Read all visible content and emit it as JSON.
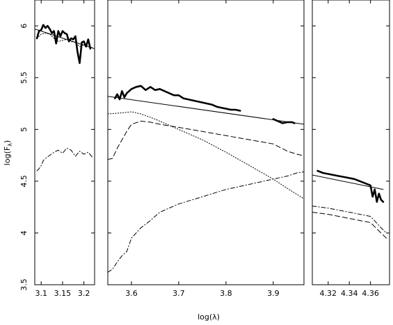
{
  "chart_data": {
    "type": "line",
    "xlabel": "log(λ)",
    "ylabel": "log(F",
    "ylabel_sub": "λ",
    "ylabel_close": ")",
    "ylim": [
      3.5,
      6.25
    ],
    "yticks": [
      {
        "v": 3.5,
        "label": "3.5"
      },
      {
        "v": 4,
        "label": "4"
      },
      {
        "v": 4.5,
        "label": "4.5"
      },
      {
        "v": 5,
        "label": "5"
      },
      {
        "v": 5.5,
        "label": "5.5"
      },
      {
        "v": 6,
        "label": "6"
      }
    ],
    "panels": [
      {
        "xlim": [
          3.085,
          3.225
        ],
        "xticks": [
          {
            "v": 3.1,
            "label": "3.1"
          },
          {
            "v": 3.15,
            "label": "3.15"
          },
          {
            "v": 3.2,
            "label": "3.2"
          }
        ],
        "series": [
          {
            "style": "thick",
            "x": [
              3.09,
              3.095,
              3.1,
              3.105,
              3.11,
              3.115,
              3.12,
              3.125,
              3.13,
              3.135,
              3.14,
              3.145,
              3.15,
              3.155,
              3.16,
              3.165,
              3.17,
              3.175,
              3.18,
              3.185,
              3.19,
              3.195,
              3.2,
              3.205,
              3.21,
              3.215
            ],
            "y": [
              5.88,
              5.95,
              5.96,
              6.01,
              5.98,
              6.0,
              5.97,
              5.93,
              5.95,
              5.83,
              5.95,
              5.9,
              5.95,
              5.93,
              5.92,
              5.85,
              5.88,
              5.87,
              5.9,
              5.75,
              5.64,
              5.84,
              5.85,
              5.8,
              5.87,
              5.78
            ]
          },
          {
            "style": "thin",
            "x": [
              3.085,
              3.225
            ],
            "y": [
              5.97,
              5.78
            ]
          },
          {
            "style": "dotted",
            "x": [
              3.09,
              3.1,
              3.11,
              3.12,
              3.13,
              3.14,
              3.15,
              3.16,
              3.17,
              3.18,
              3.19,
              3.2,
              3.21,
              3.22
            ],
            "y": [
              5.88,
              5.92,
              5.93,
              5.92,
              5.88,
              5.85,
              5.86,
              5.87,
              5.85,
              5.84,
              5.8,
              5.82,
              5.8,
              5.79
            ]
          },
          {
            "style": "dashdot",
            "x": [
              3.09,
              3.095,
              3.1,
              3.105,
              3.11,
              3.12,
              3.13,
              3.14,
              3.15,
              3.16,
              3.17,
              3.18,
              3.19,
              3.2,
              3.21,
              3.22
            ],
            "y": [
              4.6,
              4.62,
              4.65,
              4.7,
              4.72,
              4.75,
              4.78,
              4.8,
              4.77,
              4.82,
              4.8,
              4.74,
              4.79,
              4.76,
              4.78,
              4.73
            ]
          }
        ]
      },
      {
        "xlim": [
          3.55,
          3.965
        ],
        "xticks": [
          {
            "v": 3.6,
            "label": "3.6"
          },
          {
            "v": 3.7,
            "label": "3.7"
          },
          {
            "v": 3.8,
            "label": "3.8"
          },
          {
            "v": 3.9,
            "label": "3.9"
          }
        ],
        "series": [
          {
            "style": "thick",
            "x": [
              3.565,
              3.57,
              3.575,
              3.58,
              3.585,
              3.59,
              3.6,
              3.61,
              3.62,
              3.63,
              3.64,
              3.65,
              3.66,
              3.67,
              3.68,
              3.69,
              3.7,
              3.71,
              3.72,
              3.73,
              3.74,
              3.75,
              3.76,
              3.77,
              3.78,
              3.79,
              3.8,
              3.81,
              3.82,
              3.83
            ],
            "y": [
              5.3,
              5.34,
              5.29,
              5.37,
              5.31,
              5.35,
              5.39,
              5.41,
              5.42,
              5.38,
              5.41,
              5.38,
              5.39,
              5.37,
              5.35,
              5.33,
              5.33,
              5.3,
              5.29,
              5.28,
              5.27,
              5.26,
              5.25,
              5.24,
              5.22,
              5.21,
              5.2,
              5.19,
              5.19,
              5.18
            ]
          },
          {
            "style": "thick",
            "x": [
              3.9,
              3.91,
              3.92,
              3.93,
              3.94,
              3.945
            ],
            "y": [
              5.1,
              5.08,
              5.06,
              5.07,
              5.07,
              5.06
            ]
          },
          {
            "style": "thin",
            "x": [
              3.55,
              3.965
            ],
            "y": [
              5.32,
              5.05
            ]
          },
          {
            "style": "dashed",
            "x": [
              3.55,
              3.56,
              3.57,
              3.58,
              3.59,
              3.6,
              3.62,
              3.64,
              3.66,
              3.7,
              3.75,
              3.8,
              3.85,
              3.9,
              3.93,
              3.95,
              3.96
            ],
            "y": [
              4.71,
              4.72,
              4.82,
              4.9,
              4.98,
              5.05,
              5.08,
              5.07,
              5.05,
              5.02,
              4.98,
              4.94,
              4.9,
              4.86,
              4.79,
              4.76,
              4.75
            ]
          },
          {
            "style": "dotted",
            "x": [
              3.55,
              3.58,
              3.6,
              3.62,
              3.65,
              3.7,
              3.75,
              3.8,
              3.85,
              3.9,
              3.93,
              3.965
            ],
            "y": [
              5.15,
              5.16,
              5.17,
              5.15,
              5.1,
              5.0,
              4.9,
              4.78,
              4.65,
              4.52,
              4.43,
              4.33
            ]
          },
          {
            "style": "dashdot",
            "x": [
              3.55,
              3.56,
              3.57,
              3.58,
              3.59,
              3.6,
              3.62,
              3.64,
              3.66,
              3.7,
              3.75,
              3.8,
              3.85,
              3.9,
              3.93,
              3.95,
              3.965
            ],
            "y": [
              3.62,
              3.65,
              3.72,
              3.78,
              3.82,
              3.95,
              4.05,
              4.12,
              4.2,
              4.28,
              4.35,
              4.42,
              4.47,
              4.52,
              4.55,
              4.58,
              4.59
            ]
          }
        ]
      },
      {
        "xlim": [
          4.305,
          4.378
        ],
        "xticks": [
          {
            "v": 4.32,
            "label": "4.32"
          },
          {
            "v": 4.34,
            "label": "4.34"
          },
          {
            "v": 4.36,
            "label": "4.36"
          }
        ],
        "series": [
          {
            "style": "thick",
            "x": [
              4.31,
              4.315,
              4.32,
              4.325,
              4.33,
              4.335,
              4.34,
              4.345,
              4.35,
              4.355,
              4.36,
              4.362,
              4.364,
              4.366,
              4.368,
              4.37,
              4.372
            ],
            "y": [
              4.6,
              4.58,
              4.57,
              4.56,
              4.55,
              4.54,
              4.53,
              4.52,
              4.5,
              4.48,
              4.46,
              4.35,
              4.42,
              4.3,
              4.38,
              4.32,
              4.3
            ]
          },
          {
            "style": "thin",
            "x": [
              4.305,
              4.372
            ],
            "y": [
              4.56,
              4.42
            ]
          },
          {
            "style": "dashdot",
            "x": [
              4.305,
              4.32,
              4.34,
              4.36,
              4.37,
              4.375
            ],
            "y": [
              4.26,
              4.24,
              4.2,
              4.16,
              4.05,
              4.0
            ]
          },
          {
            "style": "dashed",
            "x": [
              4.305,
              4.32,
              4.34,
              4.36,
              4.37,
              4.375
            ],
            "y": [
              4.2,
              4.18,
              4.14,
              4.1,
              4.0,
              3.95
            ]
          }
        ]
      }
    ]
  }
}
